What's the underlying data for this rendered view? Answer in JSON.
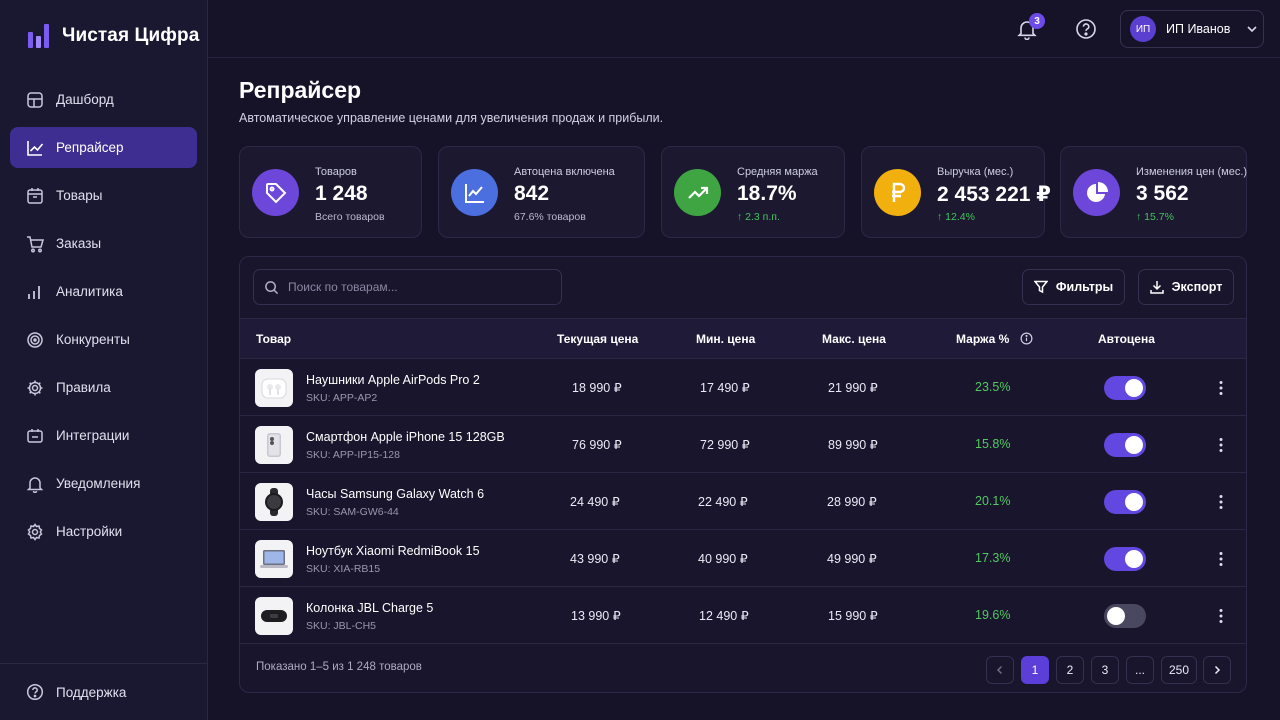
{
  "app": {
    "name": "Чистая Цифра"
  },
  "sidebar": {
    "items": [
      {
        "label": "Дашборд",
        "icon": "dashboard-icon"
      },
      {
        "label": "Репрайсер",
        "icon": "chart-line-icon",
        "active": true
      },
      {
        "label": "Товары",
        "icon": "box-icon"
      },
      {
        "label": "Заказы",
        "icon": "cart-icon"
      },
      {
        "label": "Аналитика",
        "icon": "bar-chart-icon"
      },
      {
        "label": "Конкуренты",
        "icon": "target-icon"
      },
      {
        "label": "Правила",
        "icon": "gear-icon"
      },
      {
        "label": "Интеграции",
        "icon": "plug-icon"
      },
      {
        "label": "Уведомления",
        "icon": "bell-icon"
      },
      {
        "label": "Настройки",
        "icon": "settings-icon"
      }
    ],
    "footer": {
      "label": "Поддержка",
      "icon": "help-circle-icon"
    }
  },
  "topbar": {
    "notifications_count": "3",
    "user": {
      "initials": "ИП",
      "name": "ИП Иванов"
    }
  },
  "header": {
    "title": "Репрайсер",
    "subtitle": "Автоматическое управление ценами для увеличения продаж и прибыли."
  },
  "stats": [
    {
      "label": "Товаров",
      "value": "1 248",
      "sub": "Всего товаров",
      "color": "#6C47D9",
      "icon": "tag-icon"
    },
    {
      "label": "Автоцена включена",
      "value": "842",
      "sub": "67.6% товаров",
      "color": "#4C6FE0",
      "icon": "trend-chart-icon"
    },
    {
      "label": "Средняя маржа",
      "value": "18.7%",
      "sub": "2.3 п.п.",
      "color": "#3FA543",
      "icon": "trend-up-icon"
    },
    {
      "label": "Выручка (мес.)",
      "value": "2 453 221 ₽",
      "sub": "12.4%",
      "color": "#F2B00F",
      "icon": "ruble-icon"
    },
    {
      "label": "Изменения цен (мес.)",
      "value": "3 562",
      "sub": "15.7%",
      "color": "#6C47D9",
      "icon": "pie-chart-icon"
    }
  ],
  "table": {
    "search_placeholder": "Поиск по товарам...",
    "filters_label": "Фильтры",
    "export_label": "Экспорт",
    "columns": [
      "Товар",
      "Текущая цена",
      "Мин. цена",
      "Макс. цена",
      "Маржа %",
      "Автоцена"
    ],
    "rows": [
      {
        "name": "Наушники Apple AirPods Pro 2",
        "sku": "SKU: APP-AP2",
        "price": "18 990 ₽",
        "min": "17 490 ₽",
        "max": "21 990 ₽",
        "margin": "23.5%",
        "auto": true,
        "thumb": "earbuds"
      },
      {
        "name": "Смартфон Apple iPhone 15 128GB",
        "sku": "SKU: APP-IP15-128",
        "price": "76 990 ₽",
        "min": "72 990 ₽",
        "max": "89 990 ₽",
        "margin": "15.8%",
        "auto": true,
        "thumb": "phone"
      },
      {
        "name": "Часы Samsung Galaxy Watch 6",
        "sku": "SKU: SAM-GW6-44",
        "price": "24 490 ₽",
        "min": "22 490 ₽",
        "max": "28 990 ₽",
        "margin": "20.1%",
        "auto": true,
        "thumb": "watch"
      },
      {
        "name": "Ноутбук Xiaomi RedmiBook 15",
        "sku": "SKU: XIA-RB15",
        "price": "43 990 ₽",
        "min": "40 990 ₽",
        "max": "49 990 ₽",
        "margin": "17.3%",
        "auto": true,
        "thumb": "laptop"
      },
      {
        "name": "Колонка JBL Charge 5",
        "sku": "SKU: JBL-CH5",
        "price": "13 990 ₽",
        "min": "12 490 ₽",
        "max": "15 990 ₽",
        "margin": "19.6%",
        "auto": false,
        "thumb": "speaker"
      }
    ],
    "footer": "Показано 1–5 из 1 248 товаров",
    "pagination": [
      "1",
      "2",
      "3",
      "...",
      "250"
    ],
    "current_page": "1"
  }
}
